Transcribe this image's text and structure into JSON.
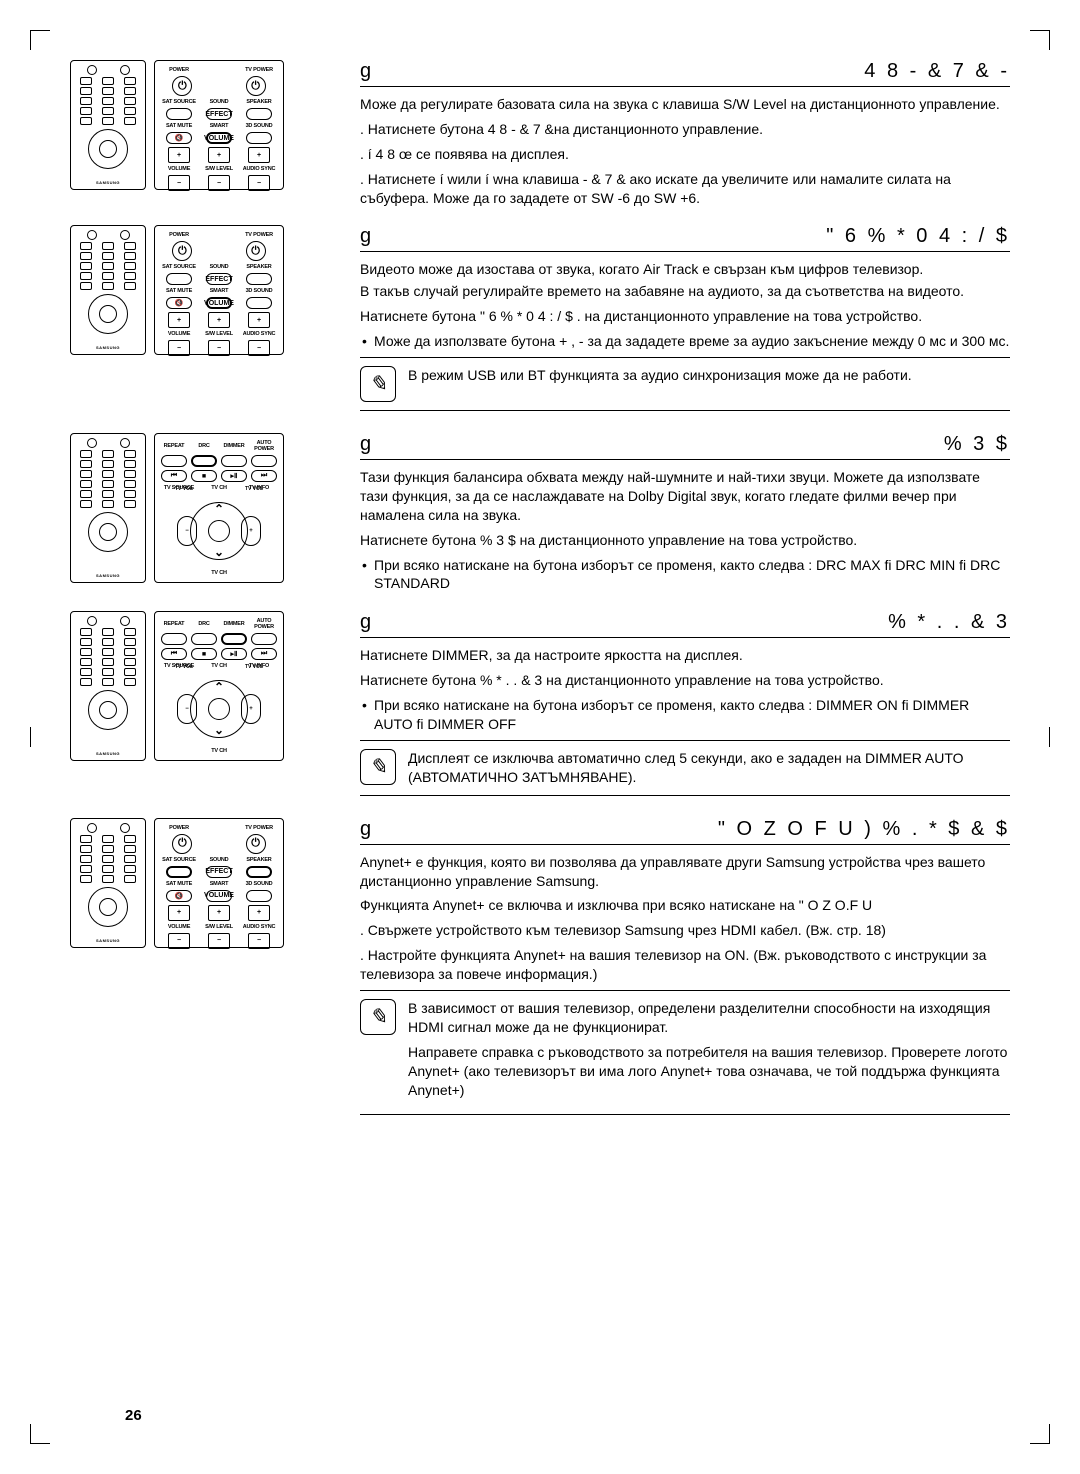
{
  "page_number": "26",
  "sections": [
    {
      "prefix": "g",
      "heading": "4 8  - & 7 & -",
      "paragraphs": [
        "Може да регулирате базовата сила на звука с клавиша S/W Level на дистанционното управление.",
        ". Натиснете бутона  4  8   - & 7 &на дистанционното управление.",
        ".  í 4 8   œ се появява на дисплея.",
        ". Натиснете   í wили  í wна клавиша  - & 7 & ако искате да увеличите или намалите силата на събуфера. Може да го зададете от SW -6 до SW +6."
      ]
    },
    {
      "prefix": "g",
      "heading": "\" 6 %  * 0  4 : / $",
      "paragraphs": [
        "Видеото може да изостава от звука, когато Air Track е свързан към цифров телевизор.",
        "В такъв случай регулирайте времето на забавяне на аудиото, за да съответства на видеото.",
        "Натиснете бутона  \" 6 %  * 0  4 : / $  . на дистанционното управление на това устройство."
      ],
      "bullets": [
        "Може да използвате бутона + , - за да зададете време за аудио закъснение между 0 мс и 300 мс."
      ],
      "note": "В режим USB или BT функцията за аудио синхронизация може да не работи."
    },
    {
      "prefix": "g",
      "heading": "% 3 $",
      "paragraphs": [
        "Тази функция балансира обхвата между най-шумните и най-тихи звуци. Можете да използвате тази функция, за да се наслаждавате на Dolby Digital звук, когато гледате филми вечер при намалена сила на звука.",
        "Натиснете бутона  % 3 $ на дистанционното управление на това устройство."
      ],
      "bullets": [
        "При всяко натискане на бутона изборът се променя, както следва : DRC MAX  fi DRC MIN  fi DRC STANDARD"
      ]
    },
    {
      "prefix": "g",
      "heading": "% * . . & 3",
      "paragraphs": [
        "Натиснете DIMMER, за да настроите яркостта на дисплея.",
        "Натиснете бутона  % * . . & 3 на дистанционното управление на това устройство."
      ],
      "bullets": [
        "При всяко натискане на бутона изборът се променя, както следва : DIMMER ON  fi DIMMER AUTO  fi DIMMER OFF"
      ],
      "note": "Дисплеят се изключва автоматично след 5 секунди, ако е зададен на DIMMER AUTO (АВТОМАТИЧНО ЗАТЪМНЯВАНЕ)."
    },
    {
      "prefix": "g",
      "heading": "\" O Z O F U    ) % . *  $ & $",
      "paragraphs": [
        "Anynet+ е функция, която ви позволява да управлявате други Samsung устройства чрез вашето дистанционно управление Samsung.",
        "Функцията Anynet+ се включва и изключва при всяко натискане на   \" O Z O.F U",
        ". Свържете устройството към телевизор Samsung чрез HDMI кабел. (Вж. стр. 18)",
        ". Настройте функцията Anynet+ на вашия телевизор на ON. (Вж. ръководството с инструкции за телевизора за повече информация.)"
      ],
      "note_multi": [
        "В зависимост от вашия телевизор, определени разделителни способности на изходящия HDMI сигнал може да не функционират.",
        "Направете справка с ръководството за потребителя на вашия телевизор. Проверете логото Anynet+ (ако телевизорът ви има лого Anynet+ това означава, че той поддържа функцията Anynet+)"
      ]
    }
  ],
  "remote": {
    "power": "POWER",
    "tvpower": "TV POWER",
    "sat_source": "SAT SOURCE",
    "sound": "SOUND",
    "speaker": "SPEAKER",
    "effect": "EFFECT",
    "sat_mute": "SAT MUTE",
    "smart": "SMART",
    "sound3d": "3D SOUND",
    "volume": "VOLUME",
    "swlevel": "S/W LEVEL",
    "audiosync": "AUDIO SYNC",
    "repeat": "REPEAT",
    "drc": "DRC",
    "dimmer": "DIMMER",
    "autopower": "AUTO POWER",
    "tvsource": "TV SOURCE",
    "tvch": "TV CH",
    "tvinfo": "TV INFO",
    "tvvol": "TV VOL",
    "logo": "SAMSUNG"
  }
}
